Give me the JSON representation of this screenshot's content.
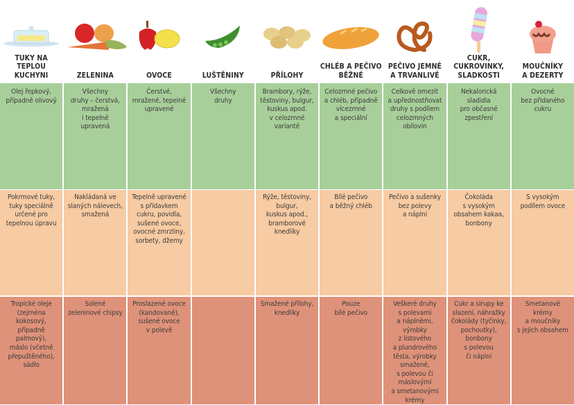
{
  "colors": {
    "recommended": "#a8cf9a",
    "limited": "#f7cba3",
    "avoid": "#df927a"
  },
  "columns": [
    {
      "icon": "butter-dish-icon",
      "title": "TUKY NA\nTEPLOU\nKUCHYNI",
      "green": "Olej řepkový,\npřípadně olivový",
      "orange": "Pokrmové tuky,\ntuky speciálně\nurčené pro\ntepelnou úpravu",
      "red": "Tropické oleje\n(zejména\nkokosový,\npřípadně\npalmový),\nmáslo (včetně\npřepuštěného),\nsádlo"
    },
    {
      "icon": "vegetables-icon",
      "title": "ZELENINA",
      "green": "Všechny\ndruhy – čerstvá,\nmražená\ni tepelně\nupravená",
      "orange": "Nakládaná ve\nslaných nálevech,\nsmažená",
      "red": "Solené\nzeleninové chipsy"
    },
    {
      "icon": "fruit-icon",
      "title": "OVOCE",
      "green": "Čerstvé,\nmražené, tepelně\nupravené",
      "orange": "Tepelně upravené\ns přídavkem\ncukru, povidla,\nsušené ovoce,\novocné zmrzliny,\nsorbety, džemy",
      "red": "Proslazené ovoce\n(kandované),\nsušené ovoce\nv polevě"
    },
    {
      "icon": "pea-pod-icon",
      "title": "LUŠTĚNINY",
      "green": "Všechny\ndruhy",
      "orange": "",
      "red": ""
    },
    {
      "icon": "potatoes-icon",
      "title": "PŘÍLOHY",
      "green": "Brambory, rýže,\ntěstoviny, bulgur,\nkuskus apod.\nv celozrnné\nvariantě",
      "orange": "Rýže, těstoviny,\nbulgur,\nkuskus apod.,\nbramborové\nknedlíky",
      "red": "Smažené přílohy,\nknedlíky"
    },
    {
      "icon": "bread-icon",
      "title": "CHLÉB A PEČIVO\nBĚŽNÉ",
      "green": "Celozrnné pečivo\na chléb, případně\nvícezrnné\na speciální",
      "orange": "Bílé pečivo\na běžný chléb",
      "red": "Pouze\nbílé pečivo"
    },
    {
      "icon": "pretzel-icon",
      "title": "PEČIVO JEMNÉ\nA TRVANLIVÉ",
      "green": "Celkově omezit\na upřednostňovat\ndruhy s podílem\ncelozrnných\nobilovin",
      "orange": "Pečivo a sušenky\nbez polevy\na náplní",
      "red": "Veškeré druhy\ns polevami\na náplněmi,\nvýrobky\nz listového\na plundrového\ntěsta, výrobky\nsmažené,\ns polevou či\nmáslovými\na smetanovými\nkrémy"
    },
    {
      "icon": "ice-pop-icon",
      "title": "CUKR,\nCUKROVINKY,\nSLADKOSTI",
      "green": "Nekalorická\nsladidla\npro občasné\nzpestření",
      "orange": "Čokoláda\ns vysokým\nobsahem kakaa,\nbonbony",
      "red": "Cukr a sirupy ke\nslazení, náhražky\nčokolády (tyčinky,\npochoutky),\nbonbony\ns polevou\nči náplní"
    },
    {
      "icon": "cupcake-icon",
      "title": "MOUČNÍKY\nA DEZERTY",
      "green": "Ovocné\nbez přidaného\ncukru",
      "orange": "S vysokým\npodílem ovoce",
      "red": "Smetanové\nkrémy\na moučníky\ns jejich obsahem"
    }
  ]
}
